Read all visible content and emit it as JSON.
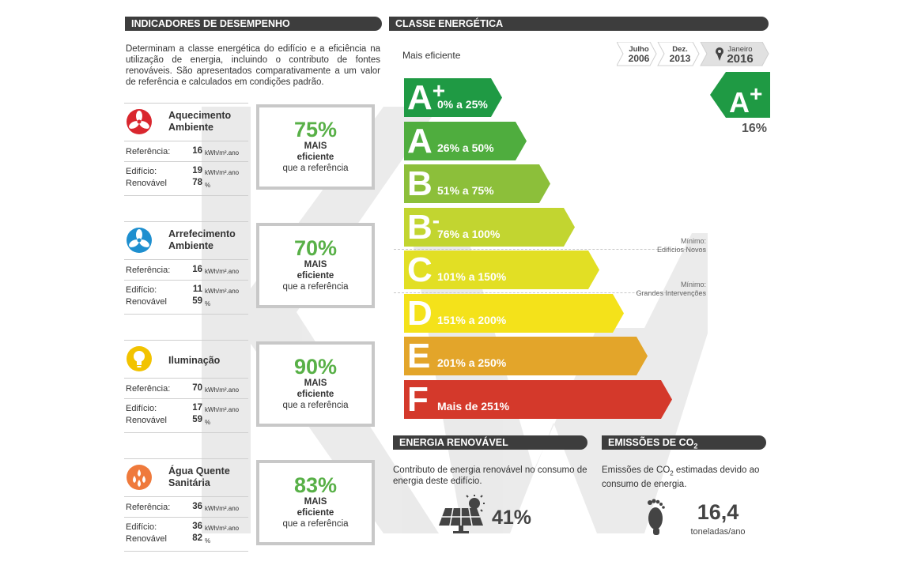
{
  "indicators": {
    "header": "INDICADORES DE DESEMPENHO",
    "description": "Determinam a classe energética do edifício e a eficiência na utilização de energia, incluindo o contributo de fontes renováveis. São apresentados comparativamente a um valor de referência e calculados em condições padrão.",
    "labels": {
      "referencia": "Referência:",
      "edificio": "Edifício:",
      "renovavel": "Renovável"
    },
    "units": {
      "energy": "kWh/m².ano",
      "percent": "%"
    },
    "items": [
      {
        "title_1": "Aquecimento",
        "title_2": "Ambiente",
        "icon": "fan-heating-icon",
        "color": "#d9272e",
        "referencia": "16",
        "edificio": "19",
        "renovavel": "78",
        "pct": "75%",
        "mais": "MAIS",
        "eficiente": "eficiente",
        "ref_text": "que a referência"
      },
      {
        "title_1": "Arrefecimento",
        "title_2": "Ambiente",
        "icon": "fan-cooling-icon",
        "color": "#1e8fcf",
        "referencia": "16",
        "edificio": "11",
        "renovavel": "59",
        "pct": "70%",
        "mais": "MAIS",
        "eficiente": "eficiente",
        "ref_text": "que a referência"
      },
      {
        "title_1": "Iluminação",
        "title_2": "",
        "icon": "lightbulb-icon",
        "color": "#f2c300",
        "referencia": "70",
        "edificio": "17",
        "renovavel": "59",
        "pct": "90%",
        "mais": "MAIS",
        "eficiente": "eficiente",
        "ref_text": "que a referência"
      },
      {
        "title_1": "Água Quente",
        "title_2": "Sanitária",
        "icon": "water-drops-icon",
        "color": "#ef7a3c",
        "referencia": "36",
        "edificio": "36",
        "renovavel": "82",
        "pct": "83%",
        "mais": "MAIS",
        "eficiente": "eficiente",
        "ref_text": "que a referência"
      }
    ]
  },
  "energy_class": {
    "header": "CLASSE ENERGÉTICA",
    "mais_eficiente": "Mais eficiente",
    "dates": [
      {
        "month": "Julho",
        "year": "2006"
      },
      {
        "month": "Dez.",
        "year": "2013"
      },
      {
        "month": "Janeiro",
        "year": "2016"
      }
    ],
    "bars": [
      {
        "letter": "A",
        "sup": "+",
        "range": "0% a 25%",
        "color": "#1f9a44"
      },
      {
        "letter": "A",
        "sup": "",
        "range": "26% a 50%",
        "color": "#4fad3e"
      },
      {
        "letter": "B",
        "sup": "",
        "range": "51% a 75%",
        "color": "#8cbf3a"
      },
      {
        "letter": "B",
        "sup": "-",
        "range": "76% a 100%",
        "color": "#c2d530"
      },
      {
        "letter": "C",
        "sup": "",
        "range": "101% a 150%",
        "color": "#e2df24"
      },
      {
        "letter": "D",
        "sup": "",
        "range": "151% a 200%",
        "color": "#f4e21a"
      },
      {
        "letter": "E",
        "sup": "",
        "range": "201% a 250%",
        "color": "#e3a52a"
      },
      {
        "letter": "F",
        "sup": "",
        "range": "Mais de 251%",
        "color": "#d4392b"
      }
    ],
    "minimo_1": {
      "label": "Mínimo:",
      "text": "Edifícios Novos"
    },
    "minimo_2": {
      "label": "Mínimo:",
      "text": "Grandes Intervenções"
    },
    "result": {
      "letter": "A",
      "sup": "+",
      "percent": "16%",
      "color": "#1f9a44"
    }
  },
  "renewable": {
    "header": "ENERGIA RENOVÁVEL",
    "description": "Contributo de energia renovável no consumo de energia deste edifício.",
    "value": "41%",
    "icon": "solar-panel-icon"
  },
  "emissions": {
    "header_prefix": "EMISSÕES DE CO",
    "header_sub": "2",
    "desc_1": "Emissões de CO",
    "desc_sub": "2",
    "desc_2": " estimadas devido ao consumo de energia.",
    "value": "16,4",
    "unit": "toneladas/ano",
    "icon": "footprint-icon"
  },
  "watermark": "KW"
}
